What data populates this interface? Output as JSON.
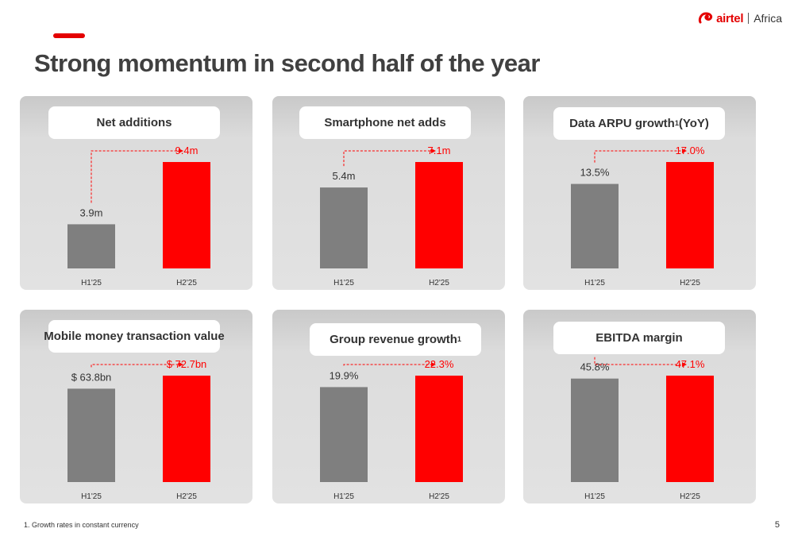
{
  "header": {
    "title": "Strong momentum in second half of the year"
  },
  "logo": {
    "brand": "airtel",
    "region": "Africa"
  },
  "colors": {
    "accent": "#e40000",
    "bar_h1": "#7f7f7f",
    "bar_h2": "#ff0000",
    "panel_bg": "#dedede",
    "text_dark": "#404040"
  },
  "panels": [
    {
      "label": "Net additions",
      "sup": ""
    },
    {
      "label": "Smartphone net adds",
      "sup": ""
    },
    {
      "label": "Data ARPU growth",
      "sup": "1",
      "suffix": " (YoY)"
    },
    {
      "label": "Mobile money transaction value",
      "sup": ""
    },
    {
      "label": "Group revenue growth",
      "sup": "1"
    },
    {
      "label": "EBITDA margin",
      "sup": ""
    }
  ],
  "chart_data": [
    {
      "type": "bar",
      "title": "Net additions",
      "categories": [
        "H1'25",
        "H2'25"
      ],
      "values": [
        3.9,
        9.4
      ],
      "labels": [
        "3.9m",
        "9.4m"
      ],
      "unit": "m"
    },
    {
      "type": "bar",
      "title": "Smartphone net adds",
      "categories": [
        "H1'25",
        "H2'25"
      ],
      "values": [
        5.4,
        7.1
      ],
      "labels": [
        "5.4m",
        "7.1m"
      ],
      "unit": "m"
    },
    {
      "type": "bar",
      "title": "Data ARPU growth1 (YoY)",
      "categories": [
        "H1'25",
        "H2'25"
      ],
      "values": [
        13.5,
        17.0
      ],
      "labels": [
        "13.5%",
        "17.0%"
      ],
      "unit": "%"
    },
    {
      "type": "bar",
      "title": "Mobile money transaction value",
      "categories": [
        "H1'25",
        "H2'25"
      ],
      "values": [
        63.8,
        72.7
      ],
      "labels": [
        "$ 63.8bn",
        "$ 72.7bn"
      ],
      "unit": "$bn"
    },
    {
      "type": "bar",
      "title": "Group revenue growth1",
      "categories": [
        "H1'25",
        "H2'25"
      ],
      "values": [
        19.9,
        22.3
      ],
      "labels": [
        "19.9%",
        "22.3%"
      ],
      "unit": "%"
    },
    {
      "type": "bar",
      "title": "EBITDA margin",
      "categories": [
        "H1'25",
        "H2'25"
      ],
      "values": [
        45.8,
        47.1
      ],
      "labels": [
        "45.8%",
        "47.1%"
      ],
      "unit": "%"
    }
  ],
  "footer": {
    "footnote": "1. Growth rates in constant currency",
    "page_number": "5"
  }
}
